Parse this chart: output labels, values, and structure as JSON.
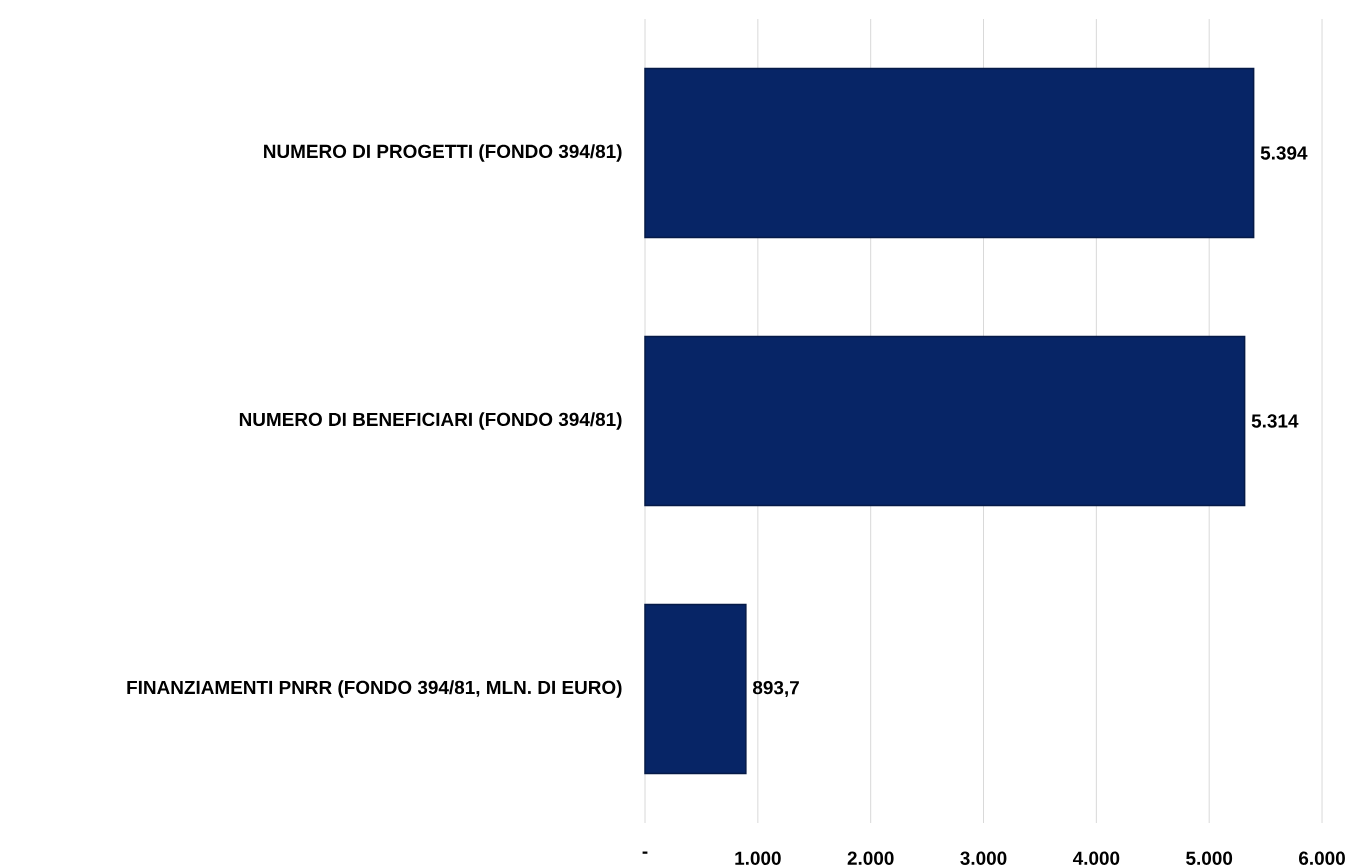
{
  "chart_data": {
    "type": "bar",
    "orientation": "horizontal",
    "categories": [
      "NUMERO DI PROGETTI (FONDO 394/81)",
      "NUMERO DI BENEFICIARI (FONDO 394/81)",
      "FINANZIAMENTI PNRR (FONDO 394/81, MLN. DI EURO)"
    ],
    "values": [
      5394,
      5314,
      893.7
    ],
    "value_labels": [
      "5.394",
      "5.314",
      "893,7"
    ],
    "color": "#072566",
    "xlim": [
      0,
      6000
    ],
    "xticks": [
      {
        "value": 0,
        "label": "-"
      },
      {
        "value": 1000,
        "label": "1.000"
      },
      {
        "value": 2000,
        "label": "2.000"
      },
      {
        "value": 3000,
        "label": "3.000"
      },
      {
        "value": 4000,
        "label": "4.000"
      },
      {
        "value": 5000,
        "label": "5.000"
      },
      {
        "value": 6000,
        "label": "6.000"
      }
    ],
    "grid": "x"
  }
}
